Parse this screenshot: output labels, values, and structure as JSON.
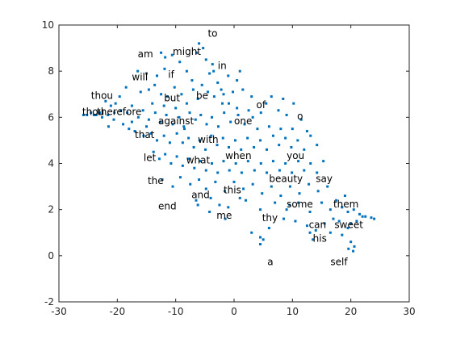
{
  "chart_data": {
    "type": "scatter",
    "title": "",
    "xlabel": "",
    "ylabel": "",
    "xlim": [
      -30,
      30
    ],
    "ylim": [
      -2,
      10
    ],
    "xticks": [
      -30,
      -20,
      -10,
      0,
      10,
      20,
      30
    ],
    "yticks": [
      -2,
      0,
      2,
      4,
      6,
      8,
      10
    ],
    "grid": false,
    "box": true,
    "marker_color": "#0072BD",
    "points": [
      [
        -12.5,
        8.8
      ],
      [
        -11.8,
        8.6
      ],
      [
        -10.6,
        8.7
      ],
      [
        -9.3,
        8.4
      ],
      [
        -6.0,
        9.2
      ],
      [
        -5.3,
        9.0
      ],
      [
        -4.8,
        8.5
      ],
      [
        -6.4,
        8.8
      ],
      [
        -16.5,
        8.0
      ],
      [
        -15.0,
        7.9
      ],
      [
        -13.2,
        7.8
      ],
      [
        -11.9,
        8.1
      ],
      [
        -8.1,
        8.0
      ],
      [
        -7.2,
        7.6
      ],
      [
        -4.2,
        7.9
      ],
      [
        -3.7,
        8.3
      ],
      [
        -1.0,
        7.8
      ],
      [
        0.5,
        7.6
      ],
      [
        -18.5,
        7.3
      ],
      [
        -19.6,
        6.9
      ],
      [
        -16.0,
        7.1
      ],
      [
        -14.6,
        7.2
      ],
      [
        -13.6,
        7.4
      ],
      [
        -12.5,
        7.0
      ],
      [
        -11.4,
        6.9
      ],
      [
        -10.2,
        7.3
      ],
      [
        -9.0,
        7.0
      ],
      [
        -8.1,
        6.6
      ],
      [
        -7.0,
        7.2
      ],
      [
        -6.2,
        6.8
      ],
      [
        -5.5,
        7.4
      ],
      [
        -4.5,
        7.1
      ],
      [
        -3.4,
        6.9
      ],
      [
        -2.8,
        7.5
      ],
      [
        -1.8,
        7.0
      ],
      [
        -0.9,
        6.6
      ],
      [
        1.5,
        7.2
      ],
      [
        3.0,
        6.9
      ],
      [
        -22.0,
        6.7
      ],
      [
        -21.1,
        6.5
      ],
      [
        -20.3,
        6.6
      ],
      [
        -19.4,
        6.3
      ],
      [
        -18.3,
        6.2
      ],
      [
        -17.5,
        6.5
      ],
      [
        -16.4,
        6.0
      ],
      [
        -15.6,
        6.3
      ],
      [
        -14.6,
        5.9
      ],
      [
        -13.5,
        6.2
      ],
      [
        -12.6,
        5.8
      ],
      [
        -11.6,
        6.1
      ],
      [
        -10.5,
        5.7
      ],
      [
        -9.4,
        6.0
      ],
      [
        -8.6,
        5.6
      ],
      [
        -7.6,
        6.2
      ],
      [
        -6.6,
        5.9
      ],
      [
        -5.7,
        6.1
      ],
      [
        -4.7,
        5.7
      ],
      [
        -3.8,
        6.0
      ],
      [
        -2.7,
        5.6
      ],
      [
        -1.7,
        6.2
      ],
      [
        -0.6,
        5.8
      ],
      [
        0.7,
        6.1
      ],
      [
        1.8,
        5.7
      ],
      [
        3.2,
        6.0
      ],
      [
        4.6,
        6.2
      ],
      [
        5.5,
        6.6
      ],
      [
        6.4,
        6.9
      ],
      [
        7.6,
        6.3
      ],
      [
        8.4,
        6.8
      ],
      [
        9.0,
        6.1
      ],
      [
        10.2,
        6.6
      ],
      [
        -24.5,
        6.2
      ],
      [
        -23.6,
        6.1
      ],
      [
        -23.0,
        6.2
      ],
      [
        -25.2,
        6.1
      ],
      [
        -25.8,
        6.1
      ],
      [
        -24.0,
        6.1
      ],
      [
        -22.6,
        6.0
      ],
      [
        -21.6,
        6.1
      ],
      [
        -20.6,
        5.9
      ],
      [
        -19.0,
        5.7
      ],
      [
        -18.0,
        5.5
      ],
      [
        -17.0,
        5.4
      ],
      [
        -15.5,
        5.2
      ],
      [
        -14.2,
        5.3
      ],
      [
        -13.2,
        5.0
      ],
      [
        -12.0,
        5.2
      ],
      [
        -11.0,
        4.9
      ],
      [
        -9.8,
        5.3
      ],
      [
        -8.8,
        4.9
      ],
      [
        -7.8,
        5.1
      ],
      [
        -6.9,
        4.7
      ],
      [
        -5.9,
        5.0
      ],
      [
        -4.9,
        4.6
      ],
      [
        -3.9,
        5.2
      ],
      [
        -2.9,
        4.8
      ],
      [
        -1.9,
        5.1
      ],
      [
        -0.9,
        4.7
      ],
      [
        0.2,
        5.0
      ],
      [
        1.2,
        4.6
      ],
      [
        2.3,
        5.1
      ],
      [
        3.4,
        4.7
      ],
      [
        4.5,
        5.0
      ],
      [
        5.6,
        4.6
      ],
      [
        6.7,
        5.2
      ],
      [
        7.7,
        4.8
      ],
      [
        8.8,
        5.1
      ],
      [
        9.8,
        4.7
      ],
      [
        10.9,
        5.0
      ],
      [
        12.0,
        4.6
      ],
      [
        13.1,
        5.2
      ],
      [
        14.2,
        4.8
      ],
      [
        -13.8,
        4.5
      ],
      [
        -12.8,
        4.2
      ],
      [
        -11.8,
        4.4
      ],
      [
        -10.8,
        4.0
      ],
      [
        -9.8,
        4.3
      ],
      [
        -8.8,
        3.9
      ],
      [
        -7.8,
        4.2
      ],
      [
        -6.8,
        3.8
      ],
      [
        -5.8,
        4.1
      ],
      [
        -4.8,
        3.7
      ],
      [
        -3.8,
        4.0
      ],
      [
        -2.8,
        3.6
      ],
      [
        -1.8,
        4.1
      ],
      [
        -0.8,
        3.7
      ],
      [
        0.3,
        4.0
      ],
      [
        1.3,
        3.6
      ],
      [
        2.4,
        4.1
      ],
      [
        3.5,
        3.7
      ],
      [
        4.6,
        4.0
      ],
      [
        5.6,
        3.6
      ],
      [
        6.7,
        4.1
      ],
      [
        7.8,
        3.7
      ],
      [
        8.8,
        4.0
      ],
      [
        9.9,
        3.6
      ],
      [
        11.0,
        4.1
      ],
      [
        12.0,
        3.7
      ],
      [
        13.1,
        4.0
      ],
      [
        14.2,
        3.6
      ],
      [
        15.3,
        4.1
      ],
      [
        -12.3,
        3.3
      ],
      [
        -10.5,
        3.0
      ],
      [
        -9.2,
        3.4
      ],
      [
        -7.5,
        3.1
      ],
      [
        -6.0,
        3.3
      ],
      [
        -4.8,
        2.9
      ],
      [
        -3.2,
        3.2
      ],
      [
        -1.6,
        2.8
      ],
      [
        0.0,
        3.2
      ],
      [
        1.6,
        2.9
      ],
      [
        3.2,
        3.1
      ],
      [
        4.8,
        2.7
      ],
      [
        6.4,
        3.0
      ],
      [
        8.0,
        2.6
      ],
      [
        9.6,
        3.0
      ],
      [
        11.2,
        2.7
      ],
      [
        12.8,
        3.1
      ],
      [
        14.4,
        2.8
      ],
      [
        16.0,
        3.0
      ],
      [
        -6.5,
        2.4
      ],
      [
        -6.2,
        2.2
      ],
      [
        -4.0,
        2.5
      ],
      [
        -1.0,
        2.1
      ],
      [
        2.0,
        2.4
      ],
      [
        4.5,
        2.0
      ],
      [
        7.0,
        2.3
      ],
      [
        9.0,
        2.0
      ],
      [
        11.0,
        2.3
      ],
      [
        13.0,
        1.9
      ],
      [
        15.0,
        2.3
      ],
      [
        16.5,
        2.0
      ],
      [
        17.5,
        2.4
      ],
      [
        18.5,
        2.1
      ],
      [
        19.5,
        1.9
      ],
      [
        20.5,
        2.0
      ],
      [
        21.5,
        1.8
      ],
      [
        22.5,
        1.7
      ],
      [
        23.5,
        1.65
      ],
      [
        24.0,
        1.6
      ],
      [
        22.0,
        1.7
      ],
      [
        19.0,
        2.6
      ],
      [
        17.0,
        1.6
      ],
      [
        18.0,
        1.5
      ],
      [
        20.0,
        1.4
      ],
      [
        21.0,
        1.5
      ],
      [
        19.5,
        1.2
      ],
      [
        18.5,
        0.9
      ],
      [
        16.5,
        1.0
      ],
      [
        15.5,
        1.4
      ],
      [
        14.0,
        1.1
      ],
      [
        12.5,
        1.3
      ],
      [
        10.5,
        1.5
      ],
      [
        8.5,
        1.6
      ],
      [
        6.0,
        1.2
      ],
      [
        4.5,
        0.8
      ],
      [
        3.0,
        1.0
      ],
      [
        -4.2,
        1.9
      ],
      [
        -1.5,
        1.6
      ],
      [
        13.0,
        1.0
      ],
      [
        13.5,
        0.7
      ],
      [
        20.0,
        0.6
      ],
      [
        20.6,
        0.4
      ],
      [
        20.4,
        0.2
      ],
      [
        19.6,
        0.3
      ],
      [
        4.5,
        0.5
      ],
      [
        5.0,
        0.7
      ],
      [
        1.0,
        2.5
      ],
      [
        -2.5,
        2.2
      ],
      [
        -8.5,
        5.5
      ],
      [
        -10.0,
        6.4
      ],
      [
        -14.0,
        6.6
      ],
      [
        -12.0,
        6.5
      ],
      [
        -17.5,
        5.8
      ],
      [
        -15.0,
        5.6
      ],
      [
        -20.5,
        6.2
      ],
      [
        -21.5,
        5.6
      ],
      [
        -2.0,
        6.6
      ],
      [
        0.5,
        6.4
      ],
      [
        2.5,
        6.3
      ],
      [
        4.0,
        5.5
      ],
      [
        6.0,
        5.6
      ],
      [
        8.0,
        5.5
      ],
      [
        10.0,
        5.5
      ],
      [
        11.5,
        5.9
      ],
      [
        12.5,
        5.4
      ],
      [
        9.5,
        2.2
      ],
      [
        -3.5,
        8.0
      ],
      [
        -2.2,
        7.2
      ],
      [
        -0.2,
        7.1
      ],
      [
        1.0,
        8.0
      ]
    ],
    "labels": [
      {
        "text": "to",
        "x": -4.5,
        "y": 9.5
      },
      {
        "text": "am",
        "x": -16.5,
        "y": 8.6
      },
      {
        "text": "might",
        "x": -10.5,
        "y": 8.7
      },
      {
        "text": "in",
        "x": -2.8,
        "y": 8.1
      },
      {
        "text": "will",
        "x": -17.5,
        "y": 7.6
      },
      {
        "text": "if",
        "x": -11.3,
        "y": 7.7
      },
      {
        "text": "thou",
        "x": -24.5,
        "y": 6.8
      },
      {
        "text": "but",
        "x": -12.0,
        "y": 6.7
      },
      {
        "text": "be",
        "x": -6.5,
        "y": 6.8
      },
      {
        "text": "of",
        "x": 3.8,
        "y": 6.4
      },
      {
        "text": "o",
        "x": 10.8,
        "y": 5.9
      },
      {
        "text": "thou",
        "x": -26.0,
        "y": 6.1
      },
      {
        "text": "therefore",
        "x": -23.5,
        "y": 6.1
      },
      {
        "text": "against",
        "x": -13.0,
        "y": 5.7
      },
      {
        "text": "one",
        "x": 0.0,
        "y": 5.7
      },
      {
        "text": "that",
        "x": -17.0,
        "y": 5.1
      },
      {
        "text": "with",
        "x": -6.2,
        "y": 4.9
      },
      {
        "text": "let",
        "x": -15.5,
        "y": 4.1
      },
      {
        "text": "what",
        "x": -8.2,
        "y": 4.0
      },
      {
        "text": "when",
        "x": -1.5,
        "y": 4.2
      },
      {
        "text": "you",
        "x": 9.0,
        "y": 4.2
      },
      {
        "text": "the",
        "x": -14.8,
        "y": 3.1
      },
      {
        "text": "this",
        "x": -1.8,
        "y": 2.7
      },
      {
        "text": "beauty",
        "x": 6.0,
        "y": 3.2
      },
      {
        "text": "say",
        "x": 14.0,
        "y": 3.2
      },
      {
        "text": "and",
        "x": -7.3,
        "y": 2.5
      },
      {
        "text": "end",
        "x": -13.0,
        "y": 2.0
      },
      {
        "text": "some",
        "x": 9.0,
        "y": 2.1
      },
      {
        "text": "them",
        "x": 17.0,
        "y": 2.1
      },
      {
        "text": "me",
        "x": -3.0,
        "y": 1.6
      },
      {
        "text": "thy",
        "x": 4.8,
        "y": 1.5
      },
      {
        "text": "can",
        "x": 12.8,
        "y": 1.2
      },
      {
        "text": "sweet",
        "x": 17.2,
        "y": 1.2
      },
      {
        "text": "his",
        "x": 13.5,
        "y": 0.6
      },
      {
        "text": "a",
        "x": 5.7,
        "y": -0.4
      },
      {
        "text": "self",
        "x": 16.5,
        "y": -0.4
      }
    ]
  }
}
